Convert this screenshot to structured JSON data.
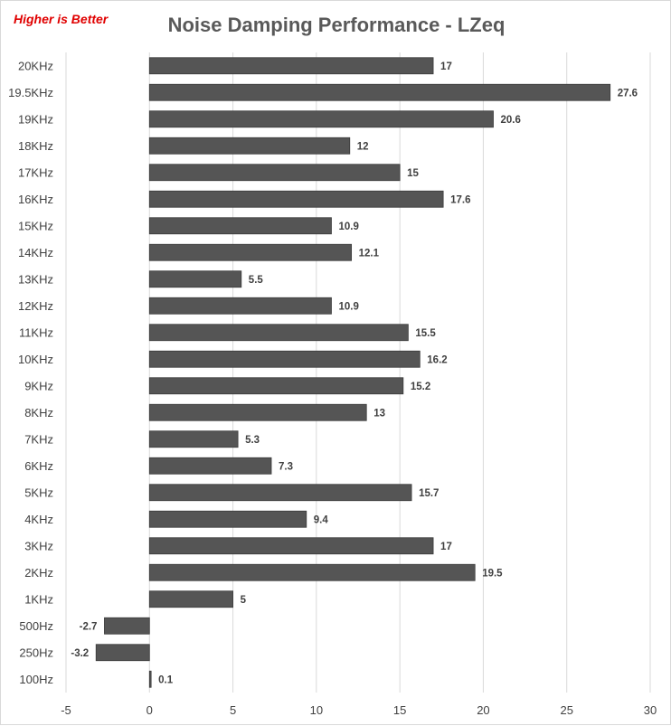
{
  "note": "Higher is Better",
  "chart_data": {
    "type": "bar",
    "orientation": "horizontal",
    "title": "Noise Damping Performance - LZeq",
    "xlabel": "",
    "ylabel": "",
    "xlim": [
      -5,
      30
    ],
    "xticks": [
      -5,
      0,
      5,
      10,
      15,
      20,
      25,
      30
    ],
    "grid": true,
    "bar_color": "#555555",
    "categories": [
      "20KHz",
      "19.5KHz",
      "19KHz",
      "18KHz",
      "17KHz",
      "16KHz",
      "15KHz",
      "14KHz",
      "13KHz",
      "12KHz",
      "11KHz",
      "10KHz",
      "9KHz",
      "8KHz",
      "7KHz",
      "6KHz",
      "5KHz",
      "4KHz",
      "3KHz",
      "2KHz",
      "1KHz",
      "500Hz",
      "250Hz",
      "100Hz"
    ],
    "values": [
      17,
      27.6,
      20.6,
      12,
      15,
      17.6,
      10.9,
      12.1,
      5.5,
      10.9,
      15.5,
      16.2,
      15.2,
      13,
      5.3,
      7.3,
      15.7,
      9.4,
      17,
      19.5,
      5,
      -2.7,
      -3.2,
      0.1
    ]
  }
}
